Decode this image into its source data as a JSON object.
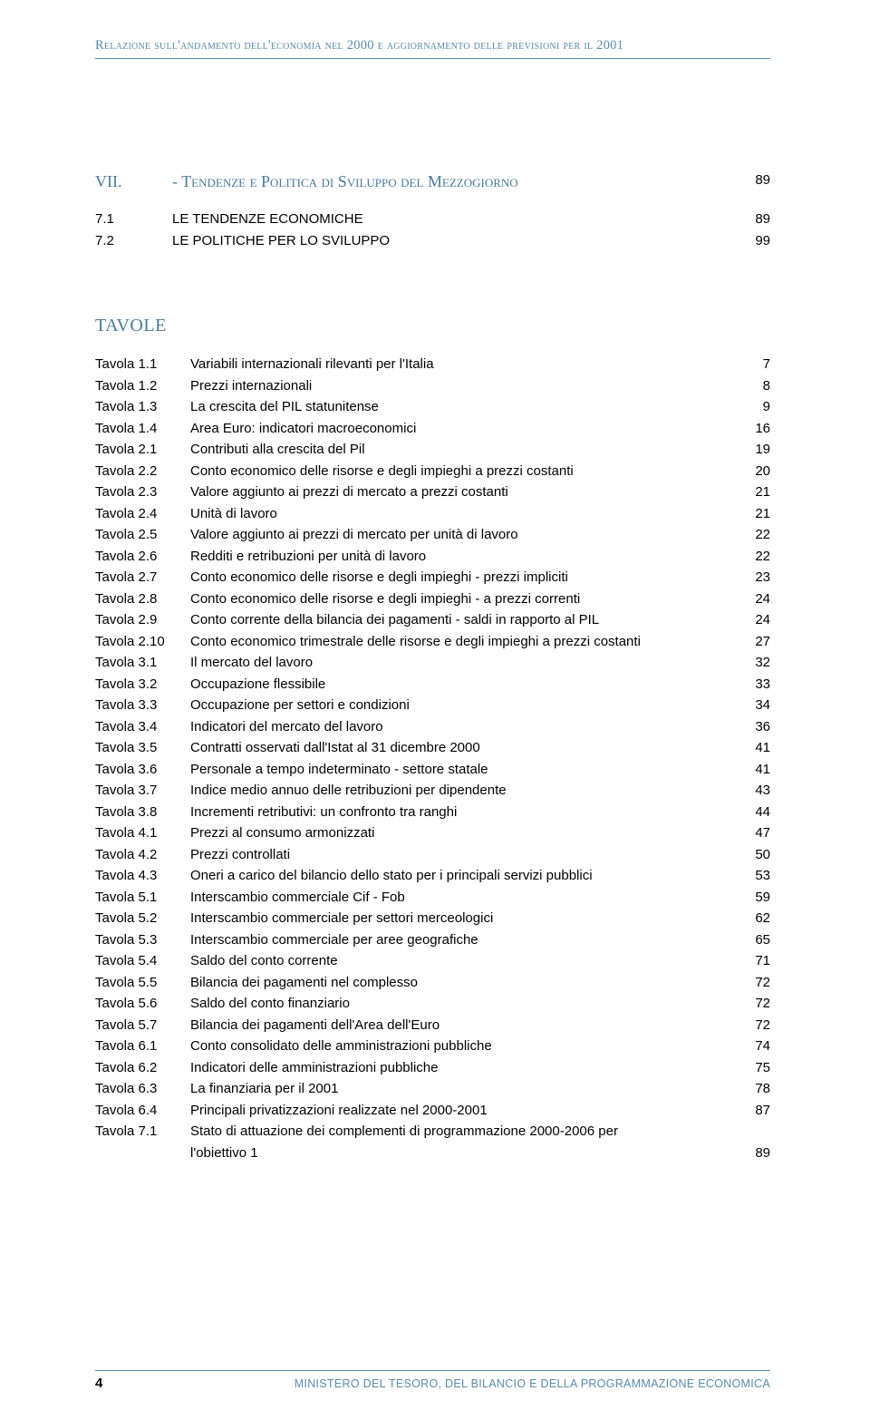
{
  "header": "Relazione sull'andamento dell'economia nel 2000 e aggiornamento delle previsioni per il 2001",
  "section": {
    "num": "VII.",
    "title": "- Tendenze e Politica di Sviluppo del Mezzogiorno",
    "page": "89"
  },
  "subs": [
    {
      "num": "7.1",
      "title": "LE TENDENZE ECONOMICHE",
      "page": "89"
    },
    {
      "num": "7.2",
      "title": "LE POLITICHE PER LO SVILUPPO",
      "page": "99"
    }
  ],
  "tavole_heading": "TAVOLE",
  "tavole": [
    {
      "n": "Tavola 1.1",
      "t": "Variabili internazionali rilevanti per l'Italia",
      "p": "7"
    },
    {
      "n": "Tavola 1.2",
      "t": "Prezzi internazionali",
      "p": "8"
    },
    {
      "n": "Tavola 1.3",
      "t": "La crescita del PIL statunitense",
      "p": "9"
    },
    {
      "n": "Tavola 1.4",
      "t": "Area Euro: indicatori macroeconomici",
      "p": "16"
    },
    {
      "n": "Tavola 2.1",
      "t": "Contributi alla crescita del Pil",
      "p": "19"
    },
    {
      "n": "Tavola 2.2",
      "t": "Conto economico delle risorse e degli impieghi a prezzi costanti",
      "p": "20"
    },
    {
      "n": "Tavola 2.3",
      "t": "Valore aggiunto ai prezzi di mercato a prezzi costanti",
      "p": "21"
    },
    {
      "n": "Tavola 2.4",
      "t": "Unità di lavoro",
      "p": "21"
    },
    {
      "n": "Tavola 2.5",
      "t": "Valore aggiunto ai prezzi di mercato per unità di lavoro",
      "p": "22"
    },
    {
      "n": "Tavola 2.6",
      "t": "Redditi e retribuzioni per unità di lavoro",
      "p": "22"
    },
    {
      "n": "Tavola 2.7",
      "t": "Conto economico delle risorse e degli impieghi - prezzi impliciti",
      "p": "23"
    },
    {
      "n": "Tavola 2.8",
      "t": "Conto economico delle risorse e degli impieghi - a prezzi correnti",
      "p": "24"
    },
    {
      "n": "Tavola 2.9",
      "t": "Conto corrente della bilancia dei pagamenti - saldi in rapporto al PIL",
      "p": "24"
    },
    {
      "n": "Tavola 2.10",
      "t": "Conto economico trimestrale delle risorse e degli impieghi a prezzi costanti",
      "p": "27"
    },
    {
      "n": "Tavola 3.1",
      "t": "Il mercato del lavoro",
      "p": "32"
    },
    {
      "n": "Tavola 3.2",
      "t": "Occupazione flessibile",
      "p": "33"
    },
    {
      "n": "Tavola 3.3",
      "t": "Occupazione per settori e condizioni",
      "p": "34"
    },
    {
      "n": "Tavola 3.4",
      "t": "Indicatori del mercato del lavoro",
      "p": "36"
    },
    {
      "n": "Tavola 3.5",
      "t": "Contratti osservati dall'Istat al 31 dicembre 2000",
      "p": "41"
    },
    {
      "n": "Tavola 3.6",
      "t": "Personale a tempo indeterminato - settore statale",
      "p": "41"
    },
    {
      "n": "Tavola 3.7",
      "t": "Indice medio annuo delle retribuzioni per dipendente",
      "p": "43"
    },
    {
      "n": "Tavola 3.8",
      "t": "Incrementi retributivi: un confronto tra ranghi",
      "p": "44"
    },
    {
      "n": "Tavola 4.1",
      "t": "Prezzi al consumo armonizzati",
      "p": "47"
    },
    {
      "n": "Tavola 4.2",
      "t": "Prezzi controllati",
      "p": "50"
    },
    {
      "n": "Tavola 4.3",
      "t": "Oneri a carico del bilancio dello stato per i principali servizi pubblici",
      "p": "53"
    },
    {
      "n": "Tavola 5.1",
      "t": "Interscambio commerciale Cif - Fob",
      "p": "59"
    },
    {
      "n": "Tavola 5.2",
      "t": "Interscambio commerciale per settori merceologici",
      "p": "62"
    },
    {
      "n": "Tavola 5.3",
      "t": "Interscambio commerciale per aree geografiche",
      "p": "65"
    },
    {
      "n": "Tavola 5.4",
      "t": "Saldo del conto corrente",
      "p": "71"
    },
    {
      "n": "Tavola 5.5",
      "t": "Bilancia dei pagamenti nel complesso",
      "p": "72"
    },
    {
      "n": "Tavola 5.6",
      "t": "Saldo del conto finanziario",
      "p": "72"
    },
    {
      "n": "Tavola 5.7",
      "t": "Bilancia dei pagamenti dell'Area dell'Euro",
      "p": "72"
    },
    {
      "n": "Tavola 6.1",
      "t": "Conto consolidato delle amministrazioni pubbliche",
      "p": "74"
    },
    {
      "n": "Tavola 6.2",
      "t": "Indicatori delle amministrazioni pubbliche",
      "p": "75"
    },
    {
      "n": "Tavola 6.3",
      "t": "La finanziaria per il 2001",
      "p": "78"
    },
    {
      "n": "Tavola 6.4",
      "t": "Principali privatizzazioni realizzate nel 2000-2001",
      "p": "87"
    }
  ],
  "tavola_last": {
    "n": "Tavola 7.1",
    "t1": "Stato di attuazione dei complementi di programmazione 2000-2006 per",
    "t2": "l'obiettivo 1",
    "p": "89"
  },
  "footer": {
    "page": "4",
    "text": "MINISTERO DEL TESORO, DEL BILANCIO E DELLA PROGRAMMAZIONE ECONOMICA"
  }
}
